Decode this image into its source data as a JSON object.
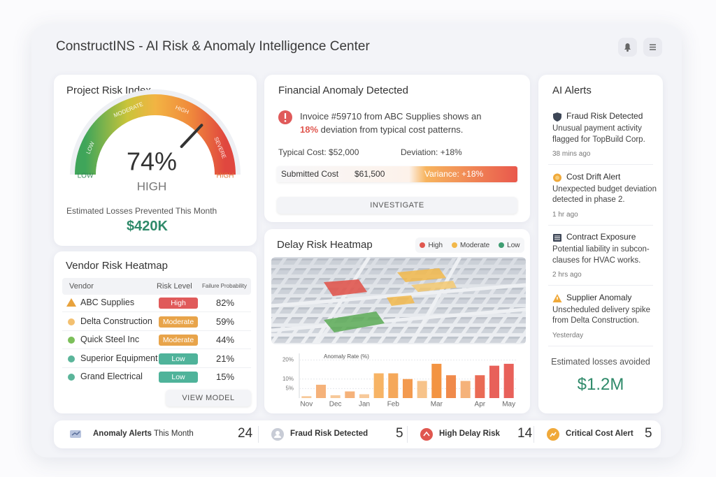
{
  "header": {
    "title": "ConstructINS - AI Risk & Anomaly Intelligence Center"
  },
  "project_risk": {
    "title": "Project Risk Index",
    "gauge": {
      "bands": [
        "LOW",
        "MODERATE",
        "HIGH",
        "SEVERE"
      ],
      "min_label": "LOW",
      "max_label": "HIGH",
      "value": 74,
      "value_label": "74%",
      "lim": [
        0,
        100
      ],
      "level": "HIGH"
    },
    "losses_label": "Estimated Losses Prevented This Month",
    "losses_value": "$420K"
  },
  "financial": {
    "title": "Financial Anomaly Detected",
    "message": {
      "before": "Invoice #59710 from ABC Supplies shows an",
      "highlight": "18%",
      "after": "deviation from typical cost patterns."
    },
    "typical_cost": "Typical Cost: $52,000",
    "deviation": "Deviation: +18%",
    "submitted_label": "Submitted Cost",
    "submitted_value": "$61,500",
    "variance": "Variance: +18%",
    "button": "INVESTIGATE"
  },
  "vendor": {
    "title": "Vendor Risk Heatmap",
    "columns": [
      "Vendor",
      "Risk Level",
      "Failure Probability"
    ],
    "rows": [
      [
        "ABC Supplies",
        "High",
        "82%"
      ],
      [
        "Delta Construction",
        "Moderate",
        "59%"
      ],
      [
        "Quick Steel Inc",
        "Moderate",
        "44%"
      ],
      [
        "Superior Equipment",
        "Low",
        "21%"
      ],
      [
        "Grand Electrical",
        "Low",
        "15%"
      ]
    ],
    "button": "VIEW MODEL"
  },
  "delay": {
    "title": "Delay Risk Heatmap",
    "legend": [
      {
        "name": "High",
        "color": "#e0574f"
      },
      {
        "name": "Moderate",
        "color": "#f2b84b"
      },
      {
        "name": "Low",
        "color": "#3f9d72"
      }
    ],
    "chart_data": {
      "type": "bar",
      "subtitle": "Anomaly Rate (%)",
      "categories": [
        "Nov",
        null,
        "Dec",
        null,
        "Jan",
        null,
        "Feb",
        null,
        null,
        "Mar",
        null,
        null,
        "Apr",
        null,
        "May"
      ],
      "values": [
        1,
        7,
        1.5,
        3.5,
        2,
        13,
        13,
        10,
        9,
        18,
        12,
        9,
        12,
        17,
        18
      ],
      "colors": [
        "#f7c99a",
        "#f5b27a",
        "#f7c99a",
        "#f5b27a",
        "#f7c99a",
        "#f7b465",
        "#f5a85a",
        "#f39a4f",
        "#f7c38a",
        "#f39442",
        "#f08a4b",
        "#f5b27a",
        "#ea6b55",
        "#e8615a",
        "#e8615a"
      ],
      "ylim": [
        0,
        22
      ],
      "yticks": [
        {
          "value": 5,
          "label": "5%"
        },
        {
          "value": 10,
          "label": "10%"
        },
        {
          "value": 20,
          "label": "20%"
        }
      ]
    }
  },
  "alerts": {
    "title": "AI Alerts",
    "items": [
      {
        "title": "Fraud Risk Detected",
        "text": [
          "Unusual payment activity",
          "flagged for TopBuild Corp."
        ],
        "time": "38 mins ago"
      },
      {
        "title": "Cost Drift Alert",
        "text": [
          "Unexpected budget deviation",
          "detected in phase 2."
        ],
        "time": "1 hr ago"
      },
      {
        "title": "Contract Exposure",
        "text": [
          "Potential liability in subcon-",
          "clauses for HVAC works."
        ],
        "time": "2 hrs ago"
      },
      {
        "title": "Supplier Anomaly",
        "text": [
          "Unscheduled delivery  spike",
          "from Delta Construction."
        ],
        "time": "Yesterday"
      }
    ],
    "footer_label": "Estimated losses avoided",
    "footer_value": "$1.2M"
  },
  "summary": [
    {
      "label": "Anomaly Alerts",
      "sublabel": "This Month",
      "count": 24
    },
    {
      "label": "Fraud Risk Detected",
      "count": 5
    },
    {
      "label": "High Delay Risk",
      "count": 14
    },
    {
      "label": "Critical Cost Alert",
      "count": 5
    }
  ]
}
